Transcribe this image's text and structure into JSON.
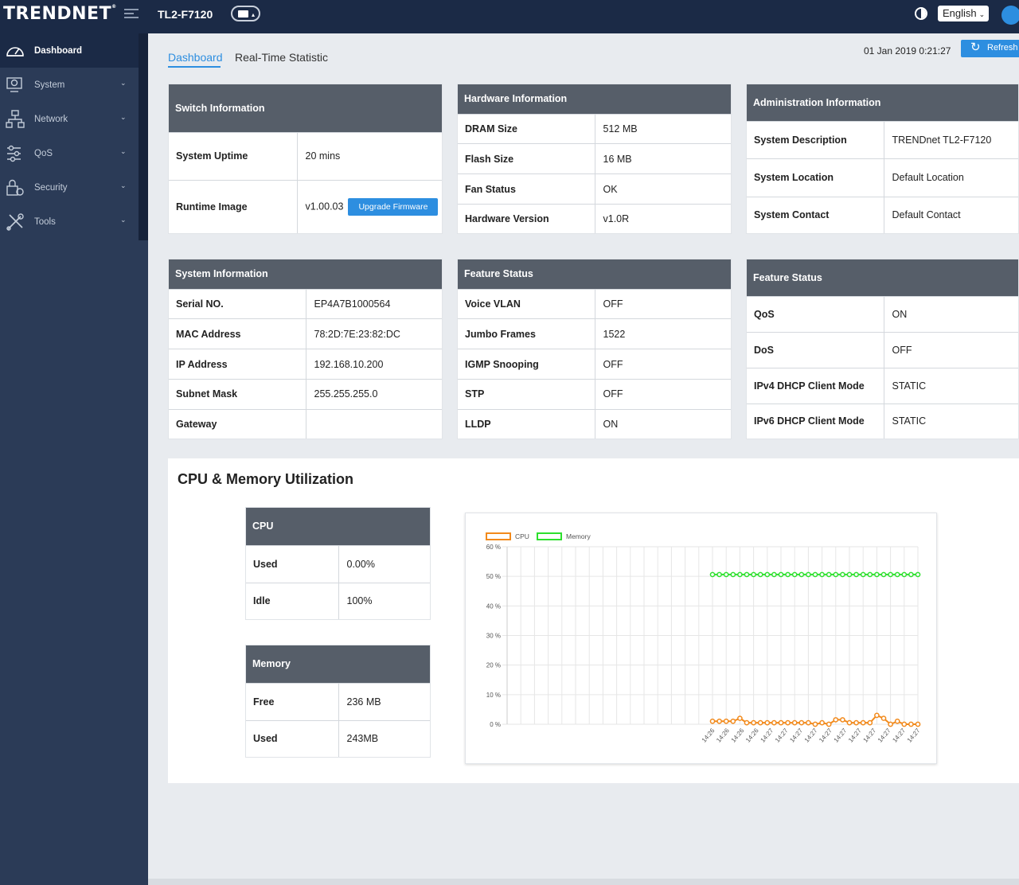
{
  "header": {
    "logo_text": "TRENDNET",
    "model": "TL2-F7120",
    "language": "English"
  },
  "sidebar": {
    "items": [
      {
        "label": "Dashboard",
        "icon": "dashboard-gauge-icon",
        "active": true
      },
      {
        "label": "System",
        "icon": "system-settings-icon"
      },
      {
        "label": "Network",
        "icon": "network-icon"
      },
      {
        "label": "QoS",
        "icon": "qos-icon"
      },
      {
        "label": "Security",
        "icon": "security-lock-icon"
      },
      {
        "label": "Tools",
        "icon": "tools-icon"
      }
    ]
  },
  "tabs": {
    "dashboard": "Dashboard",
    "realtime": "Real-Time Statistic"
  },
  "datetime": "01 Jan 2019 0:21:27",
  "refresh_label": "Refresh",
  "switch_info": {
    "title": "Switch Information",
    "uptime_label": "System Uptime",
    "uptime_value": "20 mins",
    "runtime_label": "Runtime Image",
    "runtime_value": "v1.00.03",
    "upgrade_label": "Upgrade Firmware"
  },
  "hardware_info": {
    "title": "Hardware Information",
    "rows": [
      {
        "key": "DRAM Size",
        "value": "512 MB"
      },
      {
        "key": "Flash Size",
        "value": "16 MB"
      },
      {
        "key": "Fan Status",
        "value": "OK"
      },
      {
        "key": "Hardware Version",
        "value": "v1.0R"
      }
    ]
  },
  "admin_info": {
    "title": "Administration Information",
    "rows": [
      {
        "key": "System Description",
        "value": "TRENDnet TL2-F7120"
      },
      {
        "key": "System Location",
        "value": "Default Location"
      },
      {
        "key": "System Contact",
        "value": "Default Contact"
      }
    ]
  },
  "system_info": {
    "title": "System Information",
    "rows": [
      {
        "key": "Serial NO.",
        "value": "EP4A7B1000564"
      },
      {
        "key": "MAC Address",
        "value": "78:2D:7E:23:82:DC"
      },
      {
        "key": "IP Address",
        "value": "192.168.10.200"
      },
      {
        "key": "Subnet Mask",
        "value": "255.255.255.0"
      },
      {
        "key": "Gateway",
        "value": ""
      }
    ]
  },
  "feature_status_1": {
    "title": "Feature Status",
    "rows": [
      {
        "key": "Voice VLAN",
        "value": "OFF"
      },
      {
        "key": "Jumbo Frames",
        "value": "1522"
      },
      {
        "key": "IGMP Snooping",
        "value": "OFF"
      },
      {
        "key": "STP",
        "value": "OFF"
      },
      {
        "key": "LLDP",
        "value": "ON"
      }
    ]
  },
  "feature_status_2": {
    "title": "Feature Status",
    "rows": [
      {
        "key": "QoS",
        "value": "ON"
      },
      {
        "key": "DoS",
        "value": "OFF"
      },
      {
        "key": "IPv4 DHCP Client Mode",
        "value": "STATIC"
      },
      {
        "key": "IPv6 DHCP Client Mode",
        "value": "STATIC"
      }
    ]
  },
  "utilization": {
    "title": "CPU & Memory Utilization",
    "cpu": {
      "title": "CPU",
      "rows": [
        {
          "key": "Used",
          "value": "0.00%"
        },
        {
          "key": "Idle",
          "value": "100%"
        }
      ]
    },
    "memory": {
      "title": "Memory",
      "rows": [
        {
          "key": "Free",
          "value": "236 MB"
        },
        {
          "key": "Used",
          "value": "243MB"
        }
      ]
    }
  },
  "chart_data": {
    "type": "line",
    "ylim": [
      0,
      60
    ],
    "yticks": [
      "60 %",
      "50 %",
      "40 %",
      "30 %",
      "20 %",
      "10 %",
      "0 %"
    ],
    "x": [
      "14:26",
      "14:26",
      "14:26",
      "14:26",
      "14:26",
      "14:26",
      "14:27",
      "14:27",
      "14:27",
      "14:27",
      "14:27",
      "14:27",
      "14:27",
      "14:27",
      "14:27",
      "14:27",
      "14:27",
      "14:27",
      "14:27",
      "14:27",
      "14:27",
      "14:27",
      "14:27",
      "14:27",
      "14:27",
      "14:27",
      "14:27",
      "14:27",
      "14:27",
      "14:27",
      "14:27"
    ],
    "xtick_labels": [
      "14:26",
      "14:26",
      "14:26",
      "14:26",
      "14:27",
      "14:27",
      "14:27",
      "14:27",
      "14:27",
      "14:27",
      "14:27",
      "14:27",
      "14:27",
      "14:27",
      "14:27"
    ],
    "series": [
      {
        "name": "CPU",
        "color": "#f28a1c",
        "values": [
          1,
          1,
          1,
          1,
          2,
          0.5,
          0.5,
          0.5,
          0.5,
          0.5,
          0.5,
          0.5,
          0.5,
          0.5,
          0.5,
          0,
          0.5,
          0,
          1.5,
          1.5,
          0.5,
          0.5,
          0.5,
          0.5,
          3,
          2,
          0,
          1,
          0,
          0,
          0
        ]
      },
      {
        "name": "Memory",
        "color": "#2ee02e",
        "values": [
          50.6,
          50.6,
          50.6,
          50.6,
          50.6,
          50.6,
          50.6,
          50.6,
          50.6,
          50.6,
          50.6,
          50.6,
          50.6,
          50.6,
          50.6,
          50.6,
          50.6,
          50.6,
          50.6,
          50.6,
          50.6,
          50.6,
          50.6,
          50.6,
          50.6,
          50.6,
          50.6,
          50.6,
          50.6,
          50.6,
          50.6
        ]
      }
    ],
    "grid": true,
    "legend": "top-left"
  }
}
